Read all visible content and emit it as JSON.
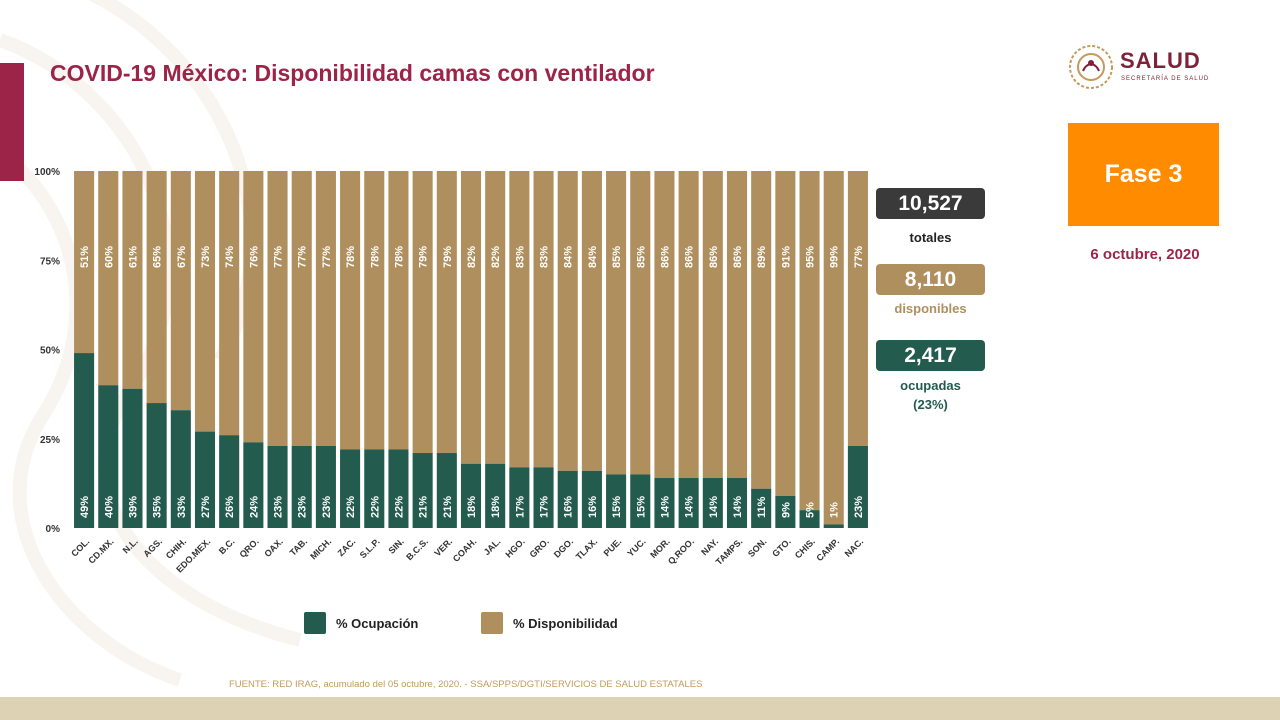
{
  "slide": {
    "title": "COVID-19 México: Disponibilidad camas con ventilador",
    "logo": {
      "name": "SALUD",
      "subtitle": "SECRETARÍA DE SALUD"
    },
    "phase": "Fase 3",
    "date": "6 octubre, 2020",
    "source": "FUENTE: RED IRAG, acumulado del 05 octubre, 2020. -  SSA/SPPS/DGTI/SERVICIOS DE SALUD ESTATALES"
  },
  "summary": {
    "total": {
      "value": "10,527",
      "label": "totales",
      "color": "#3a3a3a"
    },
    "available": {
      "value": "8,110",
      "label": "disponibles",
      "color": "#b08f5e"
    },
    "occupied": {
      "value": "2,417",
      "label": "ocupadas",
      "sublabel": "(23%)",
      "color": "#235b4e"
    }
  },
  "legend": [
    {
      "label": "% Ocupación",
      "color": "#235b4e"
    },
    {
      "label": "% Disponibilidad",
      "color": "#b08f5e"
    }
  ],
  "colors": {
    "occupied": "#235b4e",
    "available": "#b08f5e",
    "accent": "#9d2449",
    "phase": "#ff8c00"
  },
  "chart_data": {
    "type": "bar",
    "stacked": true,
    "title": "COVID-19 México: Disponibilidad camas con ventilador",
    "ylim": [
      0,
      100
    ],
    "yticks": [
      "0%",
      "25%",
      "50%",
      "75%",
      "100%"
    ],
    "categories": [
      "COL.",
      "CD.MX.",
      "N.L.",
      "AGS.",
      "CHIH.",
      "EDO.MEX.",
      "B.C.",
      "QRO.",
      "OAX.",
      "TAB.",
      "MICH.",
      "ZAC.",
      "S.L.P.",
      "SIN.",
      "B.C.S.",
      "VER.",
      "COAH.",
      "JAL.",
      "HGO.",
      "GRO.",
      "DGO.",
      "TLAX.",
      "PUE.",
      "YUC.",
      "MOR.",
      "Q.ROO.",
      "NAY.",
      "TAMPS.",
      "SON.",
      "GTO.",
      "CHIS.",
      "CAMP.",
      "NAC."
    ],
    "series": [
      {
        "name": "% Ocupación",
        "values": [
          49,
          40,
          39,
          35,
          33,
          27,
          26,
          24,
          23,
          23,
          23,
          22,
          22,
          22,
          21,
          21,
          18,
          18,
          17,
          17,
          16,
          16,
          15,
          15,
          14,
          14,
          14,
          14,
          11,
          9,
          5,
          1,
          23
        ]
      },
      {
        "name": "% Disponibilidad",
        "values": [
          51,
          60,
          61,
          65,
          67,
          73,
          74,
          76,
          77,
          77,
          77,
          78,
          78,
          78,
          79,
          79,
          82,
          82,
          83,
          83,
          84,
          84,
          85,
          85,
          86,
          86,
          86,
          86,
          89,
          91,
          95,
          99,
          77
        ]
      }
    ]
  }
}
